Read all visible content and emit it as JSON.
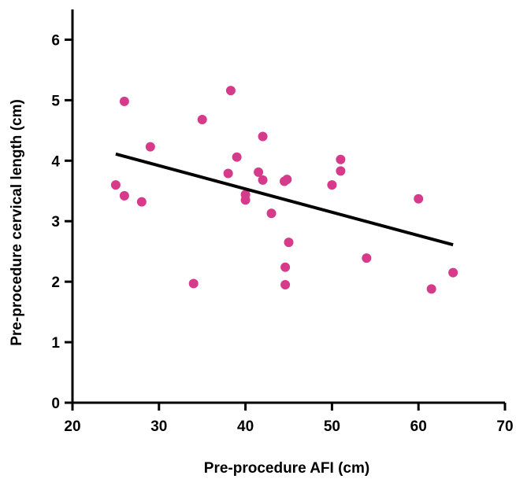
{
  "chart_data": {
    "type": "scatter",
    "title": "",
    "xlabel": "Pre-procedure AFI (cm)",
    "ylabel": "Pre-procedure cervical length (cm)",
    "xlim": [
      20,
      70
    ],
    "ylim": [
      0,
      6.5
    ],
    "xticks": [
      20,
      30,
      40,
      50,
      60,
      70
    ],
    "yticks": [
      0,
      1,
      2,
      3,
      4,
      5,
      6
    ],
    "grid": false,
    "point_color": "#d63a8a",
    "line_color": "#000000",
    "points": [
      {
        "x": 25.0,
        "y": 3.6
      },
      {
        "x": 26.0,
        "y": 4.98
      },
      {
        "x": 26.0,
        "y": 3.42
      },
      {
        "x": 28.0,
        "y": 3.32
      },
      {
        "x": 29.0,
        "y": 4.23
      },
      {
        "x": 34.0,
        "y": 1.97
      },
      {
        "x": 35.0,
        "y": 4.68
      },
      {
        "x": 38.0,
        "y": 3.79
      },
      {
        "x": 38.3,
        "y": 5.16
      },
      {
        "x": 39.0,
        "y": 4.06
      },
      {
        "x": 40.0,
        "y": 3.44
      },
      {
        "x": 40.0,
        "y": 3.35
      },
      {
        "x": 41.5,
        "y": 3.81
      },
      {
        "x": 42.0,
        "y": 4.4
      },
      {
        "x": 42.0,
        "y": 3.68
      },
      {
        "x": 43.0,
        "y": 3.13
      },
      {
        "x": 44.5,
        "y": 3.66
      },
      {
        "x": 44.8,
        "y": 3.69
      },
      {
        "x": 44.6,
        "y": 2.24
      },
      {
        "x": 44.6,
        "y": 1.95
      },
      {
        "x": 45.0,
        "y": 2.65
      },
      {
        "x": 50.0,
        "y": 3.6
      },
      {
        "x": 51.0,
        "y": 4.02
      },
      {
        "x": 51.0,
        "y": 3.83
      },
      {
        "x": 54.0,
        "y": 2.39
      },
      {
        "x": 60.0,
        "y": 3.37
      },
      {
        "x": 61.5,
        "y": 1.88
      },
      {
        "x": 64.0,
        "y": 2.15
      }
    ],
    "regression_line": {
      "x": [
        25,
        64
      ],
      "y": [
        4.11,
        2.61
      ]
    }
  }
}
